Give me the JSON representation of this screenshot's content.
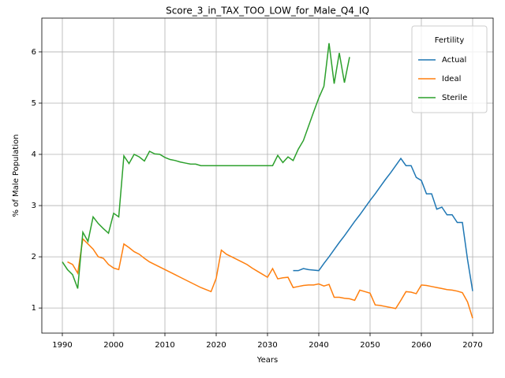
{
  "chart_data": {
    "type": "line",
    "title": "Score_3_in_TAX_TOO_LOW_for_Male_Q4_IQ",
    "x_label": "Years",
    "y_label": "% of Male Population",
    "x": [
      1990,
      1991,
      1992,
      1993,
      1994,
      1995,
      1996,
      1997,
      1998,
      1999,
      2000,
      2001,
      2002,
      2003,
      2004,
      2005,
      2006,
      2007,
      2008,
      2009,
      2010,
      2011,
      2012,
      2013,
      2014,
      2015,
      2016,
      2017,
      2018,
      2019,
      2020,
      2021,
      2022,
      2023,
      2024,
      2025,
      2026,
      2027,
      2028,
      2029,
      2030,
      2031,
      2032,
      2033,
      2034,
      2035,
      2036,
      2037,
      2038,
      2039,
      2040,
      2041,
      2042,
      2043,
      2044,
      2045,
      2046,
      2047,
      2048,
      2049,
      2050,
      2051,
      2052,
      2053,
      2054,
      2055,
      2056,
      2057,
      2058,
      2059,
      2060,
      2061,
      2062,
      2063,
      2064,
      2065,
      2066,
      2067,
      2068,
      2069,
      2070
    ],
    "series": [
      {
        "name": "Actual",
        "color": "#1f77b4",
        "values": [
          null,
          null,
          null,
          null,
          null,
          null,
          null,
          null,
          null,
          null,
          null,
          null,
          null,
          null,
          null,
          null,
          null,
          null,
          null,
          null,
          null,
          null,
          null,
          null,
          null,
          null,
          null,
          null,
          null,
          null,
          null,
          null,
          null,
          null,
          null,
          null,
          null,
          null,
          null,
          null,
          null,
          null,
          null,
          null,
          null,
          1.73,
          1.73,
          1.77,
          1.75,
          1.74,
          1.73,
          1.87,
          2.0,
          2.14,
          2.28,
          2.41,
          2.55,
          2.69,
          2.82,
          2.96,
          3.1,
          3.23,
          3.37,
          3.51,
          3.64,
          3.78,
          3.92,
          3.78,
          3.78,
          3.55,
          3.49,
          3.23,
          3.23,
          2.93,
          2.97,
          2.82,
          2.82,
          2.67,
          2.67,
          1.95,
          1.33
        ]
      },
      {
        "name": "Ideal",
        "color": "#ff7f0e",
        "values": [
          null,
          1.9,
          1.85,
          1.68,
          2.35,
          2.25,
          2.15,
          2.0,
          1.97,
          1.85,
          1.78,
          1.75,
          2.25,
          2.18,
          2.1,
          2.05,
          1.97,
          1.9,
          1.85,
          1.8,
          1.75,
          1.7,
          1.65,
          1.6,
          1.55,
          1.5,
          1.45,
          1.4,
          1.36,
          1.32,
          1.58,
          2.13,
          2.05,
          2.0,
          1.95,
          1.9,
          1.85,
          1.78,
          1.72,
          1.66,
          1.6,
          1.77,
          1.57,
          1.59,
          1.6,
          1.4,
          1.42,
          1.44,
          1.45,
          1.45,
          1.47,
          1.43,
          1.46,
          1.21,
          1.21,
          1.19,
          1.18,
          1.15,
          1.35,
          1.32,
          1.29,
          1.06,
          1.05,
          1.03,
          1.01,
          0.99,
          1.15,
          1.32,
          1.31,
          1.28,
          1.45,
          1.44,
          1.42,
          1.4,
          1.38,
          1.36,
          1.35,
          1.33,
          1.3,
          1.12,
          0.8
        ]
      },
      {
        "name": "Sterile",
        "color": "#2ca02c",
        "values": [
          1.9,
          1.75,
          1.65,
          1.38,
          2.48,
          2.3,
          2.78,
          2.65,
          2.55,
          2.46,
          2.85,
          2.78,
          3.97,
          3.82,
          4.0,
          3.95,
          3.87,
          4.06,
          4.01,
          4.0,
          3.94,
          3.9,
          3.88,
          3.85,
          3.83,
          3.81,
          3.81,
          3.78,
          3.78,
          3.78,
          3.78,
          3.78,
          3.78,
          3.78,
          3.78,
          3.78,
          3.78,
          3.78,
          3.78,
          3.78,
          3.78,
          3.78,
          3.98,
          3.84,
          3.95,
          3.88,
          4.1,
          4.27,
          4.55,
          4.83,
          5.1,
          5.33,
          6.17,
          5.38,
          5.98,
          5.4,
          5.9,
          null,
          null,
          null,
          null,
          null,
          null,
          null,
          null,
          null,
          null,
          null,
          null,
          null,
          null,
          null,
          null,
          null,
          null,
          null,
          null,
          null,
          null,
          null,
          null
        ]
      }
    ],
    "xlim": [
      1986,
      2074
    ],
    "ylim": [
      0.51,
      6.66
    ],
    "xticks": [
      1990,
      2000,
      2010,
      2020,
      2030,
      2040,
      2050,
      2060,
      2070
    ],
    "yticks": [
      1,
      2,
      3,
      4,
      5,
      6
    ],
    "grid": true,
    "legend_title": "Fertility",
    "legend_position": "upper right"
  }
}
